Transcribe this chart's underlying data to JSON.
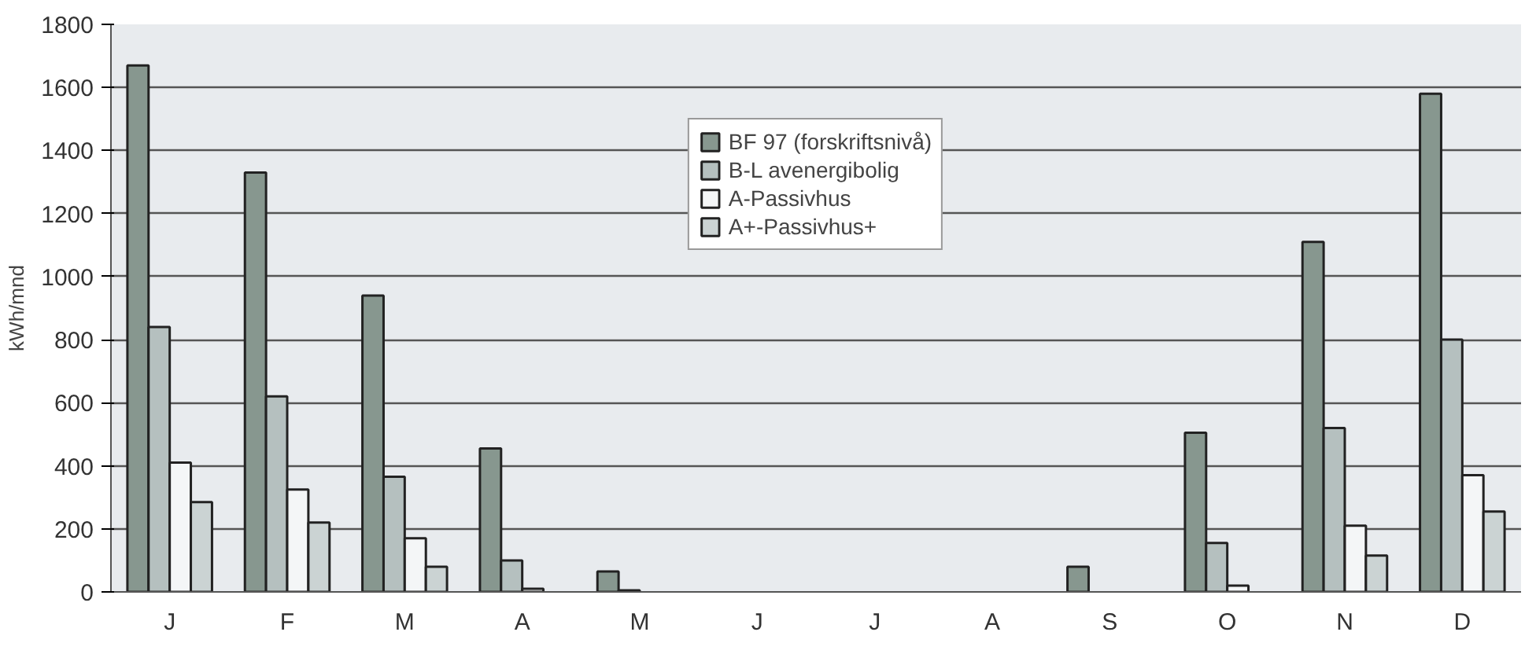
{
  "chart_data": {
    "type": "bar",
    "ylabel": "kWh/mnd",
    "categories": [
      "J",
      "F",
      "M",
      "A",
      "M",
      "J",
      "J",
      "A",
      "S",
      "O",
      "N",
      "D"
    ],
    "series": [
      {
        "name": "BF 97 (forskriftsnivå)",
        "color": "#87978f",
        "values": [
          1670,
          1330,
          940,
          455,
          65,
          null,
          null,
          null,
          80,
          505,
          1110,
          1580
        ]
      },
      {
        "name": "B-L avenergibolig",
        "color": "#b5c0bf",
        "values": [
          840,
          620,
          365,
          100,
          5,
          null,
          null,
          null,
          null,
          155,
          520,
          800
        ]
      },
      {
        "name": "A-Passivhus",
        "color": "#f4f6f7",
        "values": [
          410,
          325,
          170,
          10,
          null,
          null,
          null,
          null,
          null,
          20,
          210,
          370
        ]
      },
      {
        "name": "A+-Passivhus+",
        "color": "#cbd3d3",
        "values": [
          285,
          220,
          80,
          null,
          null,
          null,
          null,
          null,
          null,
          null,
          115,
          255
        ]
      }
    ],
    "ylim": [
      0,
      1800
    ],
    "yticks": [
      0,
      200,
      400,
      600,
      800,
      1000,
      1200,
      1400,
      1600,
      1800
    ],
    "grid": "y",
    "legend": "top"
  }
}
